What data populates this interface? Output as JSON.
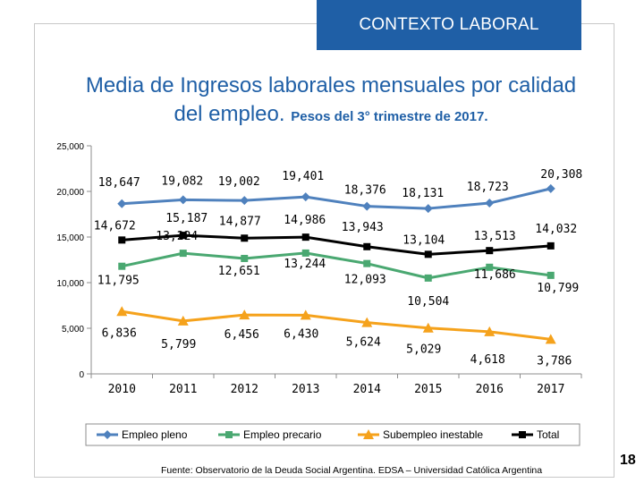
{
  "header": {
    "label": "CONTEXTO LABORAL"
  },
  "title": {
    "main": "Media de Ingresos laborales mensuales por calidad del empleo.",
    "sub": "Pesos del 3° trimestre de 2017."
  },
  "footer": {
    "source": "Fuente: Observatorio de la Deuda Social Argentina. EDSA – Universidad Católica Argentina",
    "page_number": "18"
  },
  "chart_data": {
    "type": "line",
    "x": [
      "2010",
      "2011",
      "2012",
      "2013",
      "2014",
      "2015",
      "2016",
      "2017"
    ],
    "ylim": [
      0,
      25000
    ],
    "yticks": [
      0,
      5000,
      10000,
      15000,
      20000,
      25000
    ],
    "ytick_labels": [
      "0",
      "5,000",
      "10,000",
      "15,000",
      "20,000",
      "25,000"
    ],
    "legend_position": "bottom",
    "grid": false,
    "series": [
      {
        "name": "Empleo pleno",
        "color": "#4f81bd",
        "marker": "diamond",
        "values": [
          18647,
          19082,
          19002,
          19401,
          18376,
          18131,
          18723,
          20308
        ],
        "labels": [
          "18,647",
          "19,082",
          "19,002",
          "19,401",
          "18,376",
          "18,131",
          "18,723",
          "20,308"
        ]
      },
      {
        "name": "Empleo precario",
        "color": "#4aa871",
        "marker": "square",
        "values": [
          11795,
          13224,
          12651,
          13244,
          12093,
          10504,
          11686,
          10799
        ],
        "labels": [
          "11,795",
          "13,224",
          "12,651",
          "13,244",
          "12,093",
          "10,504",
          "11,686",
          "10,799"
        ]
      },
      {
        "name": "Subempleo inestable",
        "color": "#f5a21c",
        "marker": "triangle",
        "values": [
          6836,
          5799,
          6456,
          6430,
          5624,
          5029,
          4618,
          3786
        ],
        "labels": [
          "6,836",
          "5,799",
          "6,456",
          "6,430",
          "5,624",
          "5,029",
          "4,618",
          "3,786"
        ]
      },
      {
        "name": "Total",
        "color": "#000000",
        "marker": "square",
        "values": [
          14672,
          15187,
          14877,
          14986,
          13943,
          13104,
          13513,
          14032
        ],
        "labels": [
          "14,672",
          "15,187",
          "14,877",
          "14,986",
          "13,943",
          "13,104",
          "13,513",
          "14,032"
        ]
      }
    ]
  }
}
